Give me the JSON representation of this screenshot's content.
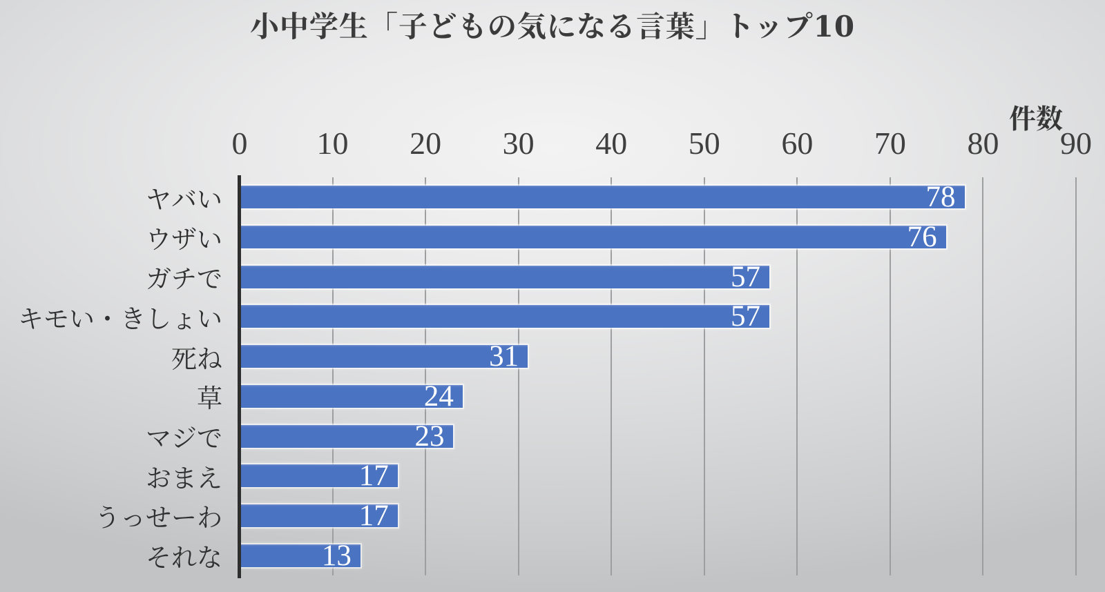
{
  "title": "小中学生「子どもの気になる言葉」トップ10",
  "unit_label": "件数",
  "chart_data": {
    "type": "bar",
    "orientation": "horizontal",
    "title": "小中学生「子どもの気になる言葉」トップ10",
    "xlabel": "件数",
    "categories": [
      "ヤバい",
      "ウザい",
      "ガチで",
      "キモい・きしょい",
      "死ね",
      "草",
      "マジで",
      "おまえ",
      "うっせーわ",
      "それな"
    ],
    "values": [
      78,
      76,
      57,
      57,
      31,
      24,
      23,
      17,
      17,
      13
    ],
    "xlim": [
      0,
      90
    ],
    "xticks": [
      0,
      10,
      20,
      30,
      40,
      50,
      60,
      70,
      80,
      90
    ],
    "grid": true,
    "bar_color": "#4a73c1",
    "value_label_color": "#ffffff"
  }
}
